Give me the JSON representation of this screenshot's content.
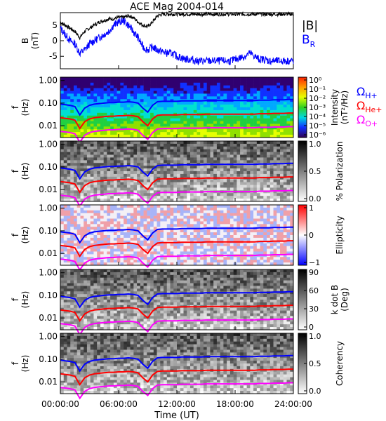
{
  "chart_data": {
    "type": "line",
    "title": "ACE Mag 2004-014",
    "xlabel": "Time (UT)",
    "xlim": [
      0,
      24
    ],
    "x_ticks": [
      "00:00:00",
      "06:00:00",
      "12:00:00",
      "18:00:00",
      "24:00:00"
    ],
    "x_tick_hours": [
      0,
      6,
      12,
      18,
      24
    ],
    "colors": {
      "B": "#000000",
      "BR": "#0000ff",
      "H": "#0000ff",
      "He": "#ff0000",
      "O": "#ff00ff"
    },
    "bfield": {
      "ylabel_main": "B",
      "ylabel_unit": "(nT)",
      "ylim": [
        -9,
        9
      ],
      "yticks": [
        5,
        0,
        -5
      ],
      "ytick_labels": [
        "5",
        "0",
        "-5"
      ],
      "legend": {
        "B": "|B|",
        "BR_main": "B",
        "BR_sub": "R"
      },
      "x_hours": [
        0.0,
        0.5,
        1.0,
        1.5,
        2.0,
        2.5,
        3.0,
        3.5,
        4.0,
        4.5,
        5.0,
        5.5,
        6.0,
        6.5,
        7.0,
        7.5,
        8.0,
        8.5,
        9.0,
        9.5,
        10.0,
        10.5,
        11.0,
        11.5,
        12.0,
        12.5,
        13.0,
        13.5,
        14.0,
        14.5,
        15.0,
        15.5,
        16.0,
        16.5,
        17.0,
        17.5,
        18.0,
        18.5,
        19.0,
        19.5,
        20.0,
        20.5,
        21.0,
        21.5,
        22.0,
        22.5,
        23.0,
        23.5,
        24.0
      ],
      "B_mag": [
        6,
        5,
        4,
        3,
        1,
        3,
        4,
        5,
        6,
        6.5,
        7,
        7,
        7.5,
        7.5,
        8,
        7.5,
        6,
        5,
        4.5,
        6,
        8,
        8.5,
        8.5,
        8.5,
        8.5,
        8.5,
        8.5,
        8.5,
        8.5,
        8.5,
        8.5,
        8.5,
        8.5,
        8.5,
        8.5,
        8.5,
        8.5,
        8.5,
        8.5,
        8.5,
        8.5,
        8.5,
        8.5,
        8.5,
        8.5,
        8.5,
        8.5,
        8.5,
        8.5
      ],
      "B_R": [
        4,
        2,
        0,
        -1,
        -4,
        -3,
        -1,
        0,
        1,
        2,
        3,
        5,
        6,
        6.5,
        5,
        3,
        1,
        -2,
        -3,
        -2,
        -3,
        -3.5,
        -4,
        -4,
        -5,
        -5.5,
        -6,
        -6,
        -6.5,
        -6.5,
        -6.5,
        -6.5,
        -6.5,
        -6.5,
        -6.5,
        -6.5,
        -6,
        -5.5,
        -5,
        -4,
        -5,
        -6,
        -6,
        -6.5,
        -6.5,
        -6.5,
        -6.5,
        -6.5,
        -6.5
      ]
    },
    "spectral_panels": [
      {
        "name": "intensity",
        "kind": "spectrum",
        "ylabel_main": "f",
        "ylabel_unit": "(Hz)",
        "colorbar_label": "Intensity",
        "colorbar_label2": "(nT²/Hz)",
        "colorbar_ticks": [
          "10⁰",
          "10⁻¹",
          "10⁻²",
          "10⁻³",
          "10⁻⁴",
          "10⁻⁵",
          "10⁻⁶"
        ]
      },
      {
        "name": "polarization",
        "kind": "gray",
        "ylabel_main": "f",
        "ylabel_unit": "(Hz)",
        "colorbar_label": "% Polarization",
        "colorbar_label2": "",
        "colorbar_ticks": [
          "1.0",
          "0.5",
          "0.0"
        ]
      },
      {
        "name": "ellipticity",
        "kind": "diverging",
        "ylabel_main": "f",
        "ylabel_unit": "(Hz)",
        "colorbar_label": "Ellipticity",
        "colorbar_label2": "",
        "colorbar_ticks": [
          "1",
          "0",
          "−1"
        ]
      },
      {
        "name": "kdotb",
        "kind": "gray",
        "ylabel_main": "f",
        "ylabel_unit": "(Hz)",
        "colorbar_label": "k dot B",
        "colorbar_label2": "(Deg)",
        "colorbar_ticks": [
          "90",
          "60",
          "30",
          "0"
        ]
      },
      {
        "name": "coherency",
        "kind": "gray",
        "ylabel_main": "f",
        "ylabel_unit": "(Hz)",
        "colorbar_label": "Coherency",
        "colorbar_label2": "",
        "colorbar_ticks": [
          "1.0",
          "0.5",
          "0.0"
        ]
      }
    ],
    "freq_yticks": [
      "1.00",
      "0.10",
      "0.01"
    ],
    "freq_ylim": [
      0.003,
      1.4
    ],
    "gyrofrequency_legend": {
      "H_main": "Ω",
      "H_sub": "H+",
      "He_main": "Ω",
      "He_sub": "He+",
      "O_main": "Ω",
      "O_sub": "O+"
    },
    "gyro_x_hours": [
      0.0,
      0.5,
      1.0,
      1.5,
      2.0,
      2.5,
      3.0,
      3.5,
      4.0,
      4.5,
      5.0,
      5.5,
      6.0,
      6.5,
      7.0,
      7.5,
      8.0,
      8.5,
      9.0,
      9.5,
      10.0,
      10.5,
      11.0,
      11.5,
      12.0,
      12.5,
      13.0,
      13.5,
      14.0,
      14.5,
      15.0,
      15.5,
      16.0,
      16.5,
      17.0,
      17.5,
      18.0,
      18.5,
      19.0,
      19.5,
      20.0,
      20.5,
      21.0,
      21.5,
      22.0,
      22.5,
      23.0,
      23.5,
      24.0
    ],
    "gyro_H": [
      0.09,
      0.085,
      0.08,
      0.07,
      0.03,
      0.06,
      0.08,
      0.09,
      0.095,
      0.1,
      0.105,
      0.105,
      0.11,
      0.11,
      0.115,
      0.11,
      0.1,
      0.06,
      0.04,
      0.08,
      0.115,
      0.12,
      0.12,
      0.12,
      0.12,
      0.125,
      0.125,
      0.125,
      0.125,
      0.125,
      0.13,
      0.13,
      0.13,
      0.13,
      0.13,
      0.13,
      0.13,
      0.13,
      0.13,
      0.13,
      0.13,
      0.135,
      0.135,
      0.135,
      0.14,
      0.14,
      0.14,
      0.145,
      0.145
    ]
  }
}
